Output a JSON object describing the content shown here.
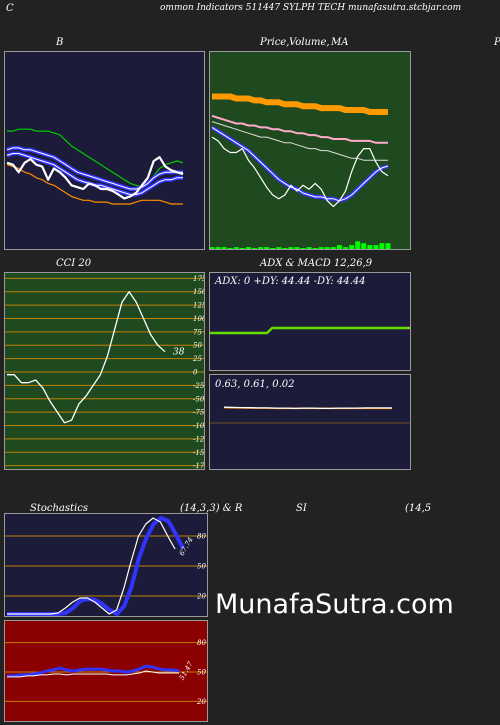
{
  "header": {
    "left_letter": "C",
    "title": "ommon  Indicators 511447 SYLPH TECH munafasutra.stcbjar.com"
  },
  "watermark": "MunafaSutra.com",
  "panels": {
    "bb": {
      "title": "B",
      "colors": {
        "bg": "#1c1c3a",
        "mid": "#ffffff",
        "upper": "#00cc00",
        "lower": "#ff8c00",
        "avg": "#3333ff"
      }
    },
    "price": {
      "title_a": "Price,",
      "title_b": "Volume,",
      "title_c": "MA",
      "edge_letter": "P",
      "colors": {
        "bg": "#1f4a1f",
        "price": "#ffffff",
        "ma_band": "#ff9900",
        "ma_pink": "#ffaacc",
        "ma_blue": "#3333ff",
        "volume": "#00ff00"
      }
    },
    "cci": {
      "title": "CCI 20",
      "last_value": "38",
      "ticks": [
        "175",
        "150",
        "125",
        "100",
        "75",
        "50",
        "25",
        "0",
        "-25",
        "-50",
        "-75",
        "-100",
        "-125",
        "-150",
        "-175"
      ],
      "tick_values": [
        175,
        150,
        125,
        100,
        75,
        50,
        25,
        0,
        -25,
        -50,
        -75,
        -100,
        -125,
        -150,
        -175
      ],
      "colors": {
        "bg": "#1f4a1f",
        "grid": "#c08000",
        "line": "#ffffff"
      }
    },
    "adx": {
      "title": "ADX  & MACD 12,26,9",
      "readout": "ADX: 0   +DY: 44.44   -DY: 44.44",
      "colors": {
        "bg": "#1c1c3a",
        "line": "#66dd00"
      }
    },
    "macd": {
      "readout": "0.63,  0.61,  0.02",
      "colors": {
        "bg": "#1c1c3a",
        "line": "#ffffff",
        "signal": "#ff8c00"
      }
    },
    "stoch": {
      "title_a": "Stochastics",
      "title_b": "(14,3,3) & R",
      "last_value": "67.74",
      "ticks": [
        "80",
        "50",
        "20"
      ],
      "tick_values": [
        80,
        50,
        20
      ],
      "colors": {
        "bg": "#1c1c3a",
        "grid": "#c08000",
        "k": "#3333ff",
        "d": "#ffffff"
      }
    },
    "rsi": {
      "title_a": "SI",
      "title_b": "(14,5",
      "last_value": "51.47",
      "ticks": [
        "80",
        "50",
        "20"
      ],
      "tick_values": [
        80,
        50,
        20
      ],
      "colors": {
        "bg": "#8b0000",
        "grid": "#c08000",
        "rsi": "#3333ff",
        "mfi": "#ffffff"
      }
    }
  },
  "chart_data": [
    {
      "type": "line",
      "title": "B",
      "ylim": [
        0,
        100
      ],
      "series": [
        {
          "values": [
            62,
            62,
            63,
            63,
            63,
            62,
            62,
            62,
            61,
            60,
            57,
            54,
            52,
            50,
            48,
            46,
            44,
            42,
            40,
            38,
            36,
            34,
            33,
            32,
            34,
            38,
            42,
            44,
            45,
            46,
            45
          ]
        },
        {
          "values": [
            52,
            53,
            53,
            52,
            52,
            51,
            50,
            49,
            48,
            46,
            44,
            42,
            40,
            39,
            38,
            37,
            36,
            35,
            34,
            33,
            32,
            31,
            31,
            32,
            34,
            37,
            39,
            40,
            40,
            40,
            40
          ]
        },
        {
          "values": [
            49,
            50,
            50,
            49,
            48,
            47,
            46,
            45,
            44,
            42,
            40,
            38,
            36,
            35,
            34,
            33,
            33,
            32,
            31,
            30,
            29,
            28,
            28,
            29,
            31,
            33,
            35,
            36,
            36,
            37,
            37
          ]
        },
        {
          "values": [
            45,
            44,
            40,
            45,
            47,
            44,
            43,
            36,
            42,
            40,
            37,
            33,
            32,
            31,
            34,
            33,
            31,
            31,
            30,
            28,
            26,
            27,
            29,
            33,
            37,
            46,
            48,
            43,
            41,
            40,
            39
          ]
        },
        {
          "values": [
            44,
            43,
            42,
            40,
            39,
            37,
            36,
            34,
            33,
            31,
            29,
            27,
            26,
            25,
            25,
            24,
            24,
            24,
            23,
            23,
            23,
            23,
            24,
            25,
            25,
            25,
            25,
            24,
            23,
            23,
            23
          ]
        }
      ]
    },
    {
      "type": "line",
      "title": "Price, Volume, MA",
      "ylim": [
        0,
        100
      ],
      "series": [
        {
          "values": [
            79,
            79,
            79,
            79,
            78,
            78,
            78,
            77,
            77,
            76,
            76,
            76,
            75,
            75,
            75,
            74,
            74,
            74,
            73,
            73,
            73,
            73,
            72,
            72,
            72,
            72,
            71,
            71,
            71,
            71
          ]
        },
        {
          "values": [
            69,
            68,
            67,
            66,
            65,
            65,
            64,
            64,
            63,
            63,
            62,
            62,
            61,
            61,
            60,
            60,
            59,
            59,
            58,
            58,
            57,
            57,
            57,
            56,
            56,
            56,
            56,
            55,
            55,
            55
          ]
        },
        {
          "values": [
            66,
            65,
            64,
            63,
            62,
            61,
            60,
            59,
            58,
            58,
            57,
            56,
            55,
            55,
            54,
            53,
            52,
            52,
            51,
            51,
            50,
            49,
            48,
            47,
            47,
            46,
            46,
            46,
            46,
            46
          ]
        },
        {
          "values": [
            63,
            61,
            59,
            57,
            55,
            53,
            51,
            48,
            45,
            42,
            39,
            36,
            34,
            32,
            31,
            29,
            28,
            27,
            27,
            26,
            26,
            25,
            26,
            28,
            31,
            34,
            37,
            40,
            42,
            43
          ]
        },
        {
          "values": [
            58,
            56,
            52,
            50,
            50,
            52,
            46,
            42,
            37,
            32,
            28,
            26,
            28,
            33,
            30,
            33,
            31,
            34,
            31,
            25,
            22,
            25,
            30,
            40,
            48,
            52,
            52,
            45,
            40,
            38
          ]
        },
        {
          "values": [
            1,
            1,
            1,
            0.5,
            1,
            0.5,
            1,
            0.5,
            1,
            1,
            0.5,
            1,
            0.5,
            1,
            1,
            0.5,
            1,
            0.5,
            1,
            1,
            1,
            2,
            1,
            2,
            4,
            3,
            2,
            2,
            3,
            3
          ]
        }
      ]
    },
    {
      "type": "line",
      "title": "CCI 20",
      "ylim": [
        -185,
        185
      ],
      "series": [
        {
          "values": [
            -5,
            -5,
            -20,
            -20,
            -15,
            -30,
            -55,
            -75,
            -95,
            -90,
            -60,
            -45,
            -25,
            -5,
            30,
            80,
            130,
            150,
            130,
            100,
            70,
            50,
            38
          ]
        }
      ]
    },
    {
      "type": "line",
      "title": "ADX  & MACD 12,26,9",
      "ylim": [
        0,
        100
      ],
      "series": [
        {
          "values": [
            44.44,
            44.44,
            44.44,
            44.44,
            44.44,
            44.44,
            44.44,
            44.44,
            44.44,
            44.44,
            44.44,
            44.44,
            44.44,
            44.44,
            44.44,
            44.44,
            44.44,
            44.44,
            44.44,
            44.44,
            44.44,
            44.44,
            44.44,
            44.44,
            44.44,
            44.44,
            44.44,
            44.44,
            44.44,
            44.44,
            44.44,
            44.44,
            44.44,
            44.44,
            44.44,
            44.44,
            44.44,
            44.44,
            44.44,
            44.44
          ]
        }
      ]
    },
    {
      "type": "line",
      "ylim": [
        -2,
        2
      ],
      "series": [
        {
          "values": [
            0.66,
            0.65,
            0.64,
            0.64,
            0.63,
            0.63,
            0.62,
            0.62,
            0.61,
            0.62,
            0.62,
            0.61,
            0.61,
            0.62,
            0.62,
            0.62,
            0.63,
            0.63,
            0.63,
            0.63
          ]
        },
        {
          "values": [
            0.64,
            0.63,
            0.63,
            0.62,
            0.62,
            0.62,
            0.61,
            0.61,
            0.61,
            0.61,
            0.61,
            0.61,
            0.61,
            0.61,
            0.61,
            0.61,
            0.61,
            0.61,
            0.61,
            0.61
          ]
        }
      ]
    },
    {
      "type": "line",
      "title": "Stochastics (14,3,3) & R",
      "ylim": [
        0,
        100
      ],
      "series": [
        {
          "values": [
            2,
            2,
            2,
            2,
            2,
            2,
            2,
            2,
            3,
            8,
            15,
            17,
            16,
            12,
            6,
            2,
            10,
            30,
            58,
            78,
            92,
            98,
            95,
            82,
            67.74
          ]
        },
        {
          "values": [
            2,
            2,
            2,
            2,
            2,
            2,
            2,
            3,
            8,
            14,
            18,
            18,
            14,
            8,
            2,
            6,
            28,
            55,
            80,
            92,
            98,
            94,
            80,
            67
          ]
        }
      ]
    },
    {
      "type": "line",
      "title": "SI (14,5",
      "ylim": [
        0,
        100
      ],
      "series": [
        {
          "values": [
            46,
            46,
            47,
            47,
            48,
            49,
            51,
            52,
            54,
            52,
            51,
            52,
            53,
            53,
            53,
            52,
            51,
            51,
            50,
            51,
            53,
            56,
            55,
            53,
            52,
            52,
            51.47
          ]
        },
        {
          "values": [
            45,
            45,
            45,
            46,
            46,
            47,
            47,
            48,
            48,
            47,
            48,
            48,
            48,
            48,
            48,
            48,
            47,
            47,
            47,
            48,
            49,
            51,
            50,
            49,
            49,
            49,
            49
          ]
        }
      ]
    }
  ]
}
